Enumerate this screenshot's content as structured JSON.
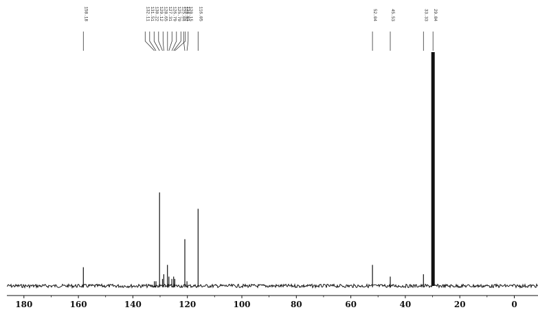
{
  "chart_data": {
    "type": "line",
    "title": "",
    "xlabel": "",
    "ylabel": "",
    "x_reversed": true,
    "xlim": [
      186,
      -4
    ],
    "ylim": [
      0,
      100
    ],
    "x_ticks": [
      180,
      160,
      140,
      120,
      100,
      80,
      60,
      40,
      20,
      0
    ],
    "x_tick_labels": [
      "180",
      "160",
      "140",
      "120",
      "100",
      "80",
      "60",
      "40",
      "20",
      "0"
    ],
    "grid": false,
    "line_color": "#111111",
    "peaks": [
      {
        "x": 158.18,
        "y": 8
      },
      {
        "x": 132.11,
        "y": 2
      },
      {
        "x": 131.51,
        "y": 2
      },
      {
        "x": 130.22,
        "y": 40
      },
      {
        "x": 129.12,
        "y": 3
      },
      {
        "x": 128.65,
        "y": 5
      },
      {
        "x": 127.31,
        "y": 9
      },
      {
        "x": 126.79,
        "y": 4
      },
      {
        "x": 125.7,
        "y": 3
      },
      {
        "x": 125.04,
        "y": 4
      },
      {
        "x": 124.61,
        "y": 3
      },
      {
        "x": 120.92,
        "y": 20
      },
      {
        "x": 120.15,
        "y": 2
      },
      {
        "x": 116.05,
        "y": 33
      },
      {
        "x": 52.04,
        "y": 9
      },
      {
        "x": 45.53,
        "y": 4
      },
      {
        "x": 33.33,
        "y": 5
      },
      {
        "x": 29.84,
        "y": 100
      }
    ],
    "peak_labels": [
      "158.18",
      "132.11",
      "131.51",
      "130.22",
      "129.12",
      "128.65",
      "127.31",
      "126.79",
      "125.70",
      "125.04",
      "124.61",
      "120.92",
      "120.15",
      "116.05",
      "52.04",
      "45.53",
      "33.33",
      "29.84"
    ]
  }
}
